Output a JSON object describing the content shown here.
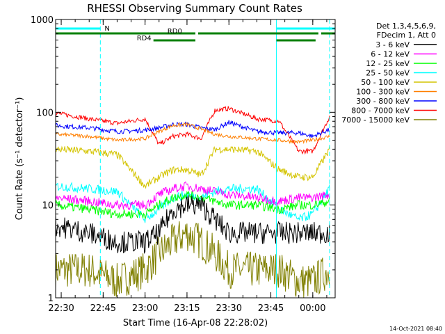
{
  "chart_data": {
    "type": "line",
    "title": "RHESSI Observing Summary Count Rates",
    "xlabel": "Start Time (16-Apr-08 22:28:02)",
    "ylabel": "Count Rate (s⁻¹ detector⁻¹)",
    "y_scale": "log",
    "ylim": [
      1,
      1000
    ],
    "xlim": [
      "22:28",
      "00:08"
    ],
    "x_ticks": [
      "22:30",
      "22:45",
      "23:00",
      "23:15",
      "23:30",
      "23:45",
      "00:00"
    ],
    "y_ticks": [
      "1",
      "10",
      "100",
      "1000"
    ],
    "timestamp": "14-Oct-2021 08:40",
    "legend_header": [
      "Det 1,3,4,5,6,9,",
      "FDecim 1, Att 0"
    ],
    "series": [
      {
        "name": "3 - 6 keV",
        "color": "#000000",
        "x": [
          "22:28",
          "22:40",
          "22:50",
          "23:00",
          "23:05",
          "23:10",
          "23:15",
          "23:20",
          "23:25",
          "23:30",
          "23:40",
          "23:48",
          "23:55",
          "00:00",
          "00:06"
        ],
        "values": [
          6,
          5,
          4,
          4,
          5,
          9,
          10,
          10,
          7,
          5,
          5,
          5,
          5,
          5,
          5
        ]
      },
      {
        "name": "6 - 12 keV",
        "color": "#ff00ff",
        "x": [
          "22:28",
          "22:40",
          "22:50",
          "23:00",
          "23:05",
          "23:10",
          "23:15",
          "23:20",
          "23:25",
          "23:30",
          "23:40",
          "23:48",
          "23:55",
          "00:00",
          "00:06"
        ],
        "values": [
          12,
          11,
          10,
          10,
          13,
          15,
          16,
          15,
          14,
          13,
          12,
          11,
          12,
          12,
          13
        ]
      },
      {
        "name": "12 - 25 keV",
        "color": "#00ff00",
        "x": [
          "22:28",
          "22:40",
          "22:50",
          "23:00",
          "23:05",
          "23:10",
          "23:15",
          "23:20",
          "23:25",
          "23:30",
          "23:40",
          "23:48",
          "23:55",
          "00:00",
          "00:06"
        ],
        "values": [
          10,
          9,
          8,
          8,
          10,
          12,
          13,
          12,
          11,
          10,
          10,
          9,
          10,
          10,
          11
        ]
      },
      {
        "name": "25 - 50 keV",
        "color": "#00ffff",
        "x": [
          "22:28",
          "22:40",
          "22:50",
          "23:00",
          "23:05",
          "23:10",
          "23:15",
          "23:20",
          "23:25",
          "23:30",
          "23:40",
          "23:48",
          "23:55",
          "00:00",
          "00:06"
        ],
        "values": [
          16,
          15,
          14,
          7,
          9,
          12,
          13,
          12,
          14,
          15,
          15,
          9,
          7,
          8,
          15
        ]
      },
      {
        "name": "50 - 100 keV",
        "color": "#d4c400",
        "x": [
          "22:28",
          "22:40",
          "22:50",
          "23:00",
          "23:05",
          "23:10",
          "23:15",
          "23:20",
          "23:25",
          "23:30",
          "23:40",
          "23:48",
          "23:55",
          "00:00",
          "00:06"
        ],
        "values": [
          40,
          38,
          35,
          16,
          20,
          24,
          24,
          21,
          40,
          40,
          38,
          24,
          20,
          20,
          40
        ]
      },
      {
        "name": "100 - 300 keV",
        "color": "#ff7f00",
        "x": [
          "22:28",
          "22:40",
          "22:50",
          "23:00",
          "23:05",
          "23:10",
          "23:15",
          "23:20",
          "23:25",
          "23:30",
          "23:40",
          "23:48",
          "23:55",
          "00:00",
          "00:06"
        ],
        "values": [
          58,
          55,
          50,
          52,
          62,
          72,
          74,
          66,
          58,
          55,
          52,
          50,
          48,
          50,
          55
        ]
      },
      {
        "name": "300 - 800 keV",
        "color": "#0000ff",
        "x": [
          "22:28",
          "22:40",
          "22:50",
          "23:00",
          "23:05",
          "23:10",
          "23:15",
          "23:20",
          "23:25",
          "23:30",
          "23:40",
          "23:48",
          "23:55",
          "00:00",
          "00:06"
        ],
        "values": [
          72,
          68,
          62,
          64,
          68,
          74,
          74,
          68,
          65,
          78,
          62,
          60,
          60,
          55,
          65
        ]
      },
      {
        "name": "800 - 7000 keV",
        "color": "#ff0000",
        "x": [
          "22:28",
          "22:40",
          "22:50",
          "23:00",
          "23:05",
          "23:10",
          "23:15",
          "23:20",
          "23:25",
          "23:30",
          "23:40",
          "23:48",
          "23:55",
          "00:00",
          "00:06"
        ],
        "values": [
          98,
          85,
          76,
          85,
          45,
          55,
          58,
          52,
          105,
          110,
          85,
          80,
          38,
          38,
          90
        ]
      },
      {
        "name": "7000 - 15000 keV",
        "color": "#808000",
        "x": [
          "22:28",
          "22:40",
          "22:50",
          "23:00",
          "23:05",
          "23:10",
          "23:15",
          "23:20",
          "23:25",
          "23:30",
          "23:40",
          "23:48",
          "23:55",
          "00:00",
          "00:06"
        ],
        "values": [
          2,
          2,
          1.5,
          2,
          3,
          4,
          5,
          4,
          3,
          2,
          2,
          2,
          1.5,
          1.5,
          2
        ]
      }
    ],
    "flags": [
      {
        "label": "N",
        "color": "#00ffff",
        "segments": [
          [
            "22:28",
            "22:44"
          ],
          [
            "23:47",
            "00:08"
          ]
        ]
      },
      {
        "label": "RD0",
        "color": "#008000",
        "segments": [
          [
            "22:28",
            "23:18"
          ],
          [
            "23:19",
            "23:47"
          ],
          [
            "23:47",
            "00:02"
          ],
          [
            "00:03",
            "00:08"
          ]
        ]
      },
      {
        "label": "RD4",
        "color": "#008000",
        "segments": [
          [
            "23:03",
            "23:18"
          ],
          [
            "23:47",
            "00:01"
          ]
        ]
      }
    ],
    "vertical_lines": {
      "color": "#00ffff",
      "solid": [
        "22:28",
        "23:47"
      ],
      "dashed": [
        "22:44",
        "00:06"
      ]
    },
    "grid": false,
    "legend_position": "right"
  }
}
